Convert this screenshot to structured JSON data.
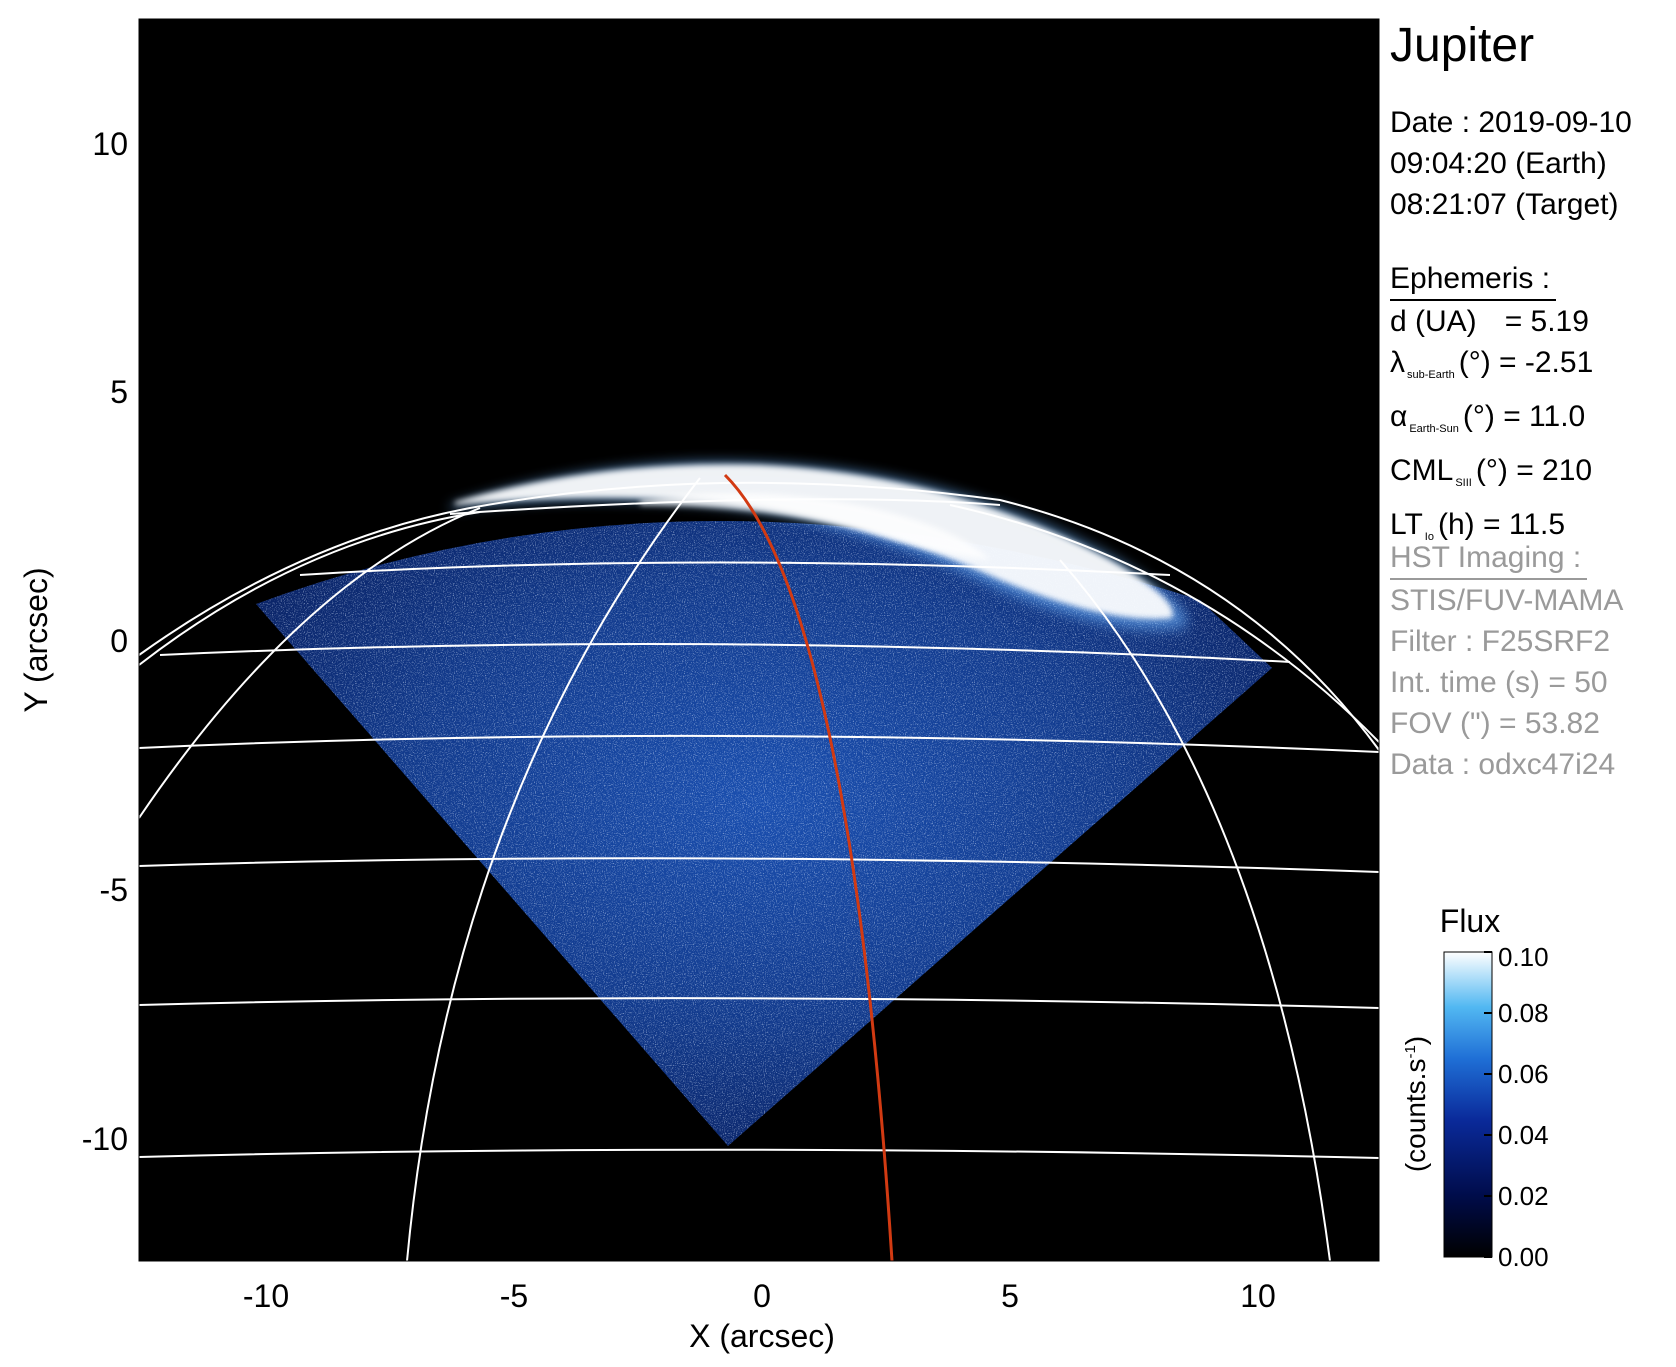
{
  "target": "Jupiter",
  "observation": {
    "date_line": "Date : 2019-09-10",
    "time_earth": "09:04:20 (Earth)",
    "time_target": "08:21:07 (Target)"
  },
  "ephemeris": {
    "heading": "Ephemeris :",
    "distance": {
      "label": "d (UA)",
      "value": "= 5.19"
    },
    "lat_sub_earth": {
      "symbol": "λ",
      "sub": "sub-Earth",
      "unit": "(°)",
      "value": "= -2.51"
    },
    "phase_angle": {
      "symbol": "α",
      "sub": "Earth-Sun",
      "unit": "(°)",
      "value": "= 11.0"
    },
    "cml": {
      "symbol": "CML",
      "sub": "SIII",
      "unit": "(°)",
      "value": "= 210"
    },
    "local_time": {
      "symbol": "LT",
      "sub": "Io",
      "unit": "(h)",
      "value": "= 11.5"
    }
  },
  "imaging": {
    "heading": "HST Imaging :",
    "instrument": "STIS/FUV-MAMA",
    "filter": "Filter : F25SRF2",
    "int_time": "Int. time (s) = 50",
    "fov": "FOV (\") = 53.82",
    "dataset": "Data : odxc47i24"
  },
  "colorbar": {
    "title": "Flux",
    "unit_label": "(counts.s",
    "unit_sup": "-1",
    "unit_close": ")",
    "ticks": [
      "0.00",
      "0.02",
      "0.04",
      "0.06",
      "0.08",
      "0.10"
    ],
    "range": [
      0,
      0.1
    ],
    "colors": [
      "#000000",
      "#000c4a",
      "#0a2a9a",
      "#1f6fd6",
      "#52b8f2",
      "#ffffff"
    ]
  },
  "axes": {
    "xlabel": "X (arcsec)",
    "ylabel": "Y (arcsec)",
    "xlim": [
      -12.5,
      12.5
    ],
    "ylim": [
      -12.5,
      12.5
    ],
    "xticks": [
      "-10",
      "-5",
      "0",
      "5",
      "10"
    ],
    "yticks": [
      "-10",
      "-5",
      "0",
      "5",
      "10"
    ]
  },
  "colors": {
    "background": "#000000",
    "grid": "#ffffff",
    "io_footprint": "#d23a12",
    "emission": "#2a6fd0"
  }
}
